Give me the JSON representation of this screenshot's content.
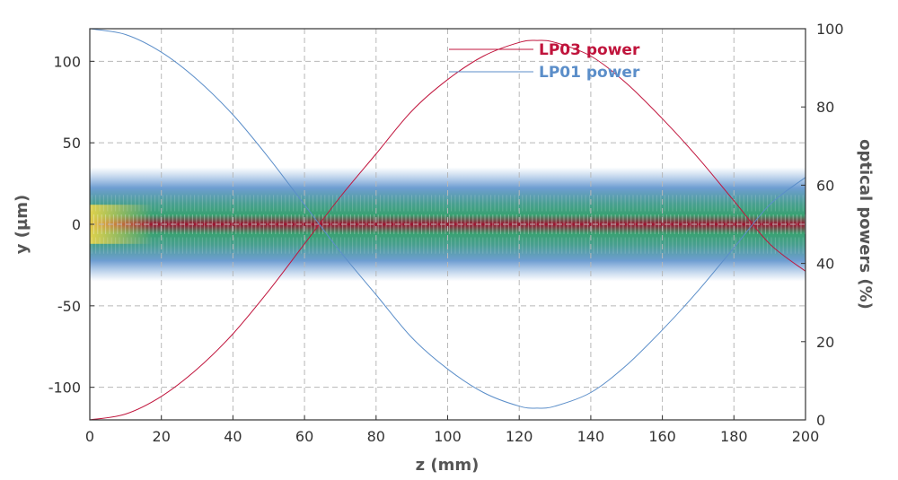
{
  "chart_data": {
    "type": "line",
    "background": "heatmap",
    "xlabel": "z (mm)",
    "ylabel_left": "y (µm)",
    "ylabel_right": "optical powers (%)",
    "xlim": [
      0,
      200
    ],
    "ylim_left": [
      -120,
      120
    ],
    "ylim_right": [
      0,
      100
    ],
    "x_ticks": [
      "0",
      "20",
      "40",
      "60",
      "80",
      "100",
      "120",
      "140",
      "160",
      "180",
      "200"
    ],
    "y_left_ticks": [
      "-100",
      "-50",
      "0",
      "50",
      "100"
    ],
    "y_right_ticks": [
      "0",
      "20",
      "40",
      "60",
      "80",
      "100"
    ],
    "grid": true,
    "legend_position": "top-center",
    "series": [
      {
        "name": "LP03 power",
        "color": "#c0143c",
        "axis": "right",
        "x": [
          0,
          10,
          20,
          30,
          40,
          50,
          60,
          70,
          80,
          90,
          100,
          110,
          120,
          125,
          130,
          140,
          150,
          160,
          170,
          180,
          190,
          200
        ],
        "values": [
          0,
          1.5,
          6,
          13,
          22,
          33,
          45,
          57,
          68,
          79,
          87,
          93,
          96.5,
          97,
          96.5,
          93,
          86,
          77,
          67,
          56,
          45,
          38
        ]
      },
      {
        "name": "LP01 power",
        "color": "#5b8ec9",
        "axis": "right",
        "x": [
          0,
          10,
          20,
          30,
          40,
          50,
          60,
          70,
          80,
          90,
          100,
          110,
          120,
          125,
          130,
          140,
          150,
          160,
          170,
          180,
          190,
          200
        ],
        "values": [
          100,
          98.5,
          94,
          87,
          78,
          67,
          55,
          43,
          32,
          21,
          13,
          7,
          3.5,
          3,
          3.5,
          7,
          14,
          23,
          33,
          44,
          55,
          62
        ]
      }
    ],
    "colors": {
      "heat_low": "#4a7fc0",
      "heat_mid": "#2e9c6a",
      "heat_high": "#a0102e",
      "heat_peak": "#e8d44a"
    }
  }
}
